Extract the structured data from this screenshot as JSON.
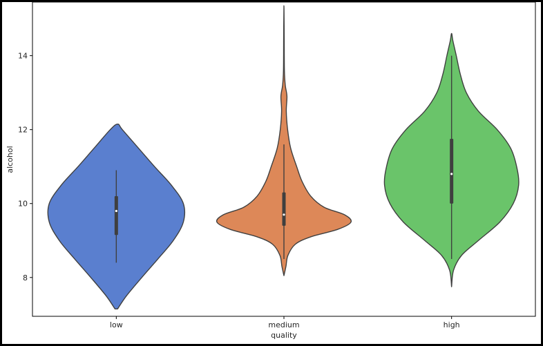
{
  "chart_data": {
    "type": "violin",
    "title": "",
    "xlabel": "quality",
    "ylabel": "alcohol",
    "categories": [
      "low",
      "medium",
      "high"
    ],
    "ylim": [
      6.95,
      15.45
    ],
    "yticks": [
      8,
      10,
      12,
      14
    ],
    "grid": false,
    "legend": "none",
    "violins": [
      {
        "category": "low",
        "color": "#5a7fcf",
        "range": [
          7.15,
          12.15
        ],
        "q1": 9.15,
        "median": 9.8,
        "q3": 10.2,
        "whisker_low": 8.4,
        "whisker_high": 10.9,
        "density": [
          [
            7.15,
            0.02
          ],
          [
            7.5,
            0.15
          ],
          [
            8.0,
            0.38
          ],
          [
            8.5,
            0.62
          ],
          [
            9.0,
            0.85
          ],
          [
            9.5,
            1.0
          ],
          [
            10.0,
            1.0
          ],
          [
            10.5,
            0.82
          ],
          [
            11.0,
            0.57
          ],
          [
            11.5,
            0.33
          ],
          [
            12.0,
            0.09
          ],
          [
            12.15,
            0.02
          ]
        ]
      },
      {
        "category": "medium",
        "color": "#dd8858",
        "range": [
          8.05,
          15.35
        ],
        "q1": 9.4,
        "median": 9.7,
        "q3": 10.3,
        "whisker_low": 8.5,
        "whisker_high": 11.6,
        "density": [
          [
            8.05,
            0.0
          ],
          [
            8.3,
            0.03
          ],
          [
            8.6,
            0.06
          ],
          [
            8.9,
            0.17
          ],
          [
            9.1,
            0.4
          ],
          [
            9.3,
            0.8
          ],
          [
            9.5,
            1.0
          ],
          [
            9.7,
            0.9
          ],
          [
            9.9,
            0.6
          ],
          [
            10.2,
            0.4
          ],
          [
            10.6,
            0.27
          ],
          [
            11.0,
            0.19
          ],
          [
            11.5,
            0.1
          ],
          [
            12.0,
            0.055
          ],
          [
            12.5,
            0.035
          ],
          [
            12.9,
            0.045
          ],
          [
            13.2,
            0.02
          ],
          [
            13.6,
            0.007
          ],
          [
            14.5,
            0.004
          ],
          [
            15.35,
            0.0
          ]
        ]
      },
      {
        "category": "high",
        "color": "#6ac46a",
        "range": [
          7.75,
          14.6
        ],
        "q1": 10.0,
        "median": 10.8,
        "q3": 11.75,
        "whisker_low": 8.5,
        "whisker_high": 14.0,
        "density": [
          [
            7.75,
            0.0
          ],
          [
            8.2,
            0.03
          ],
          [
            8.6,
            0.15
          ],
          [
            9.0,
            0.4
          ],
          [
            9.5,
            0.72
          ],
          [
            10.0,
            0.92
          ],
          [
            10.5,
            1.0
          ],
          [
            11.0,
            0.97
          ],
          [
            11.5,
            0.88
          ],
          [
            12.0,
            0.68
          ],
          [
            12.5,
            0.4
          ],
          [
            13.0,
            0.22
          ],
          [
            13.5,
            0.13
          ],
          [
            14.0,
            0.07
          ],
          [
            14.4,
            0.02
          ],
          [
            14.6,
            0.0
          ]
        ]
      }
    ]
  }
}
